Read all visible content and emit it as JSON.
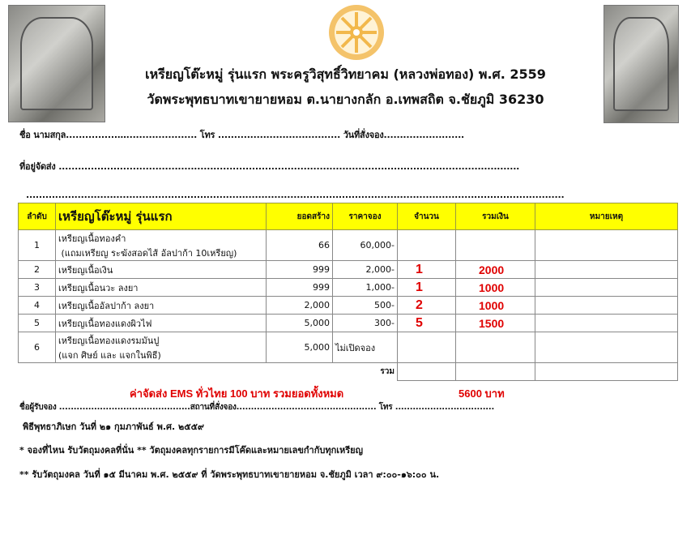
{
  "header": {
    "title_line1": "เหรียญโต๊ะหมู่ รุ่นแรก พระครูวิสุทธิ์วิทยาคม (หลวงพ่อทอง)  พ.ศ. 2559",
    "title_line2": "วัดพระพุทธบาทเขายายหอม ต.นายางกลัก อ.เทพสถิต จ.ชัยภูมิ 36230",
    "logo_icon": "dharma-wheel-icon",
    "logo_color": "#f2b84b"
  },
  "form": {
    "name_line": "ชื่อ นามสกุล................…...................... โทร ...................................... วันที่สั่งจอง.........................",
    "address_line": "ที่อยู่จัดส่ง ...............................................................................................................................................",
    "address_line2": ".......................................................................................................................................................................",
    "receiver_line": "ชื่อผู้รับจอง .............................................สถานที่สั่งจอง................................................  โทร .................................."
  },
  "table": {
    "headers": [
      "ลำดับ",
      "เหรียญโต๊ะหมู่ รุ่นแรก",
      "ยอดสร้าง",
      "ราคาจอง",
      "จำนวน",
      "รวมเงิน",
      "หมายเหตุ"
    ],
    "rows": [
      {
        "no": "1",
        "name": "เหรียญเนื้อทองคำ",
        "name2": " (แถมเหรียญ ระฆังสอดไส้ อัลปาก้า 10เหรียญ)",
        "made": "66",
        "price": "60,000-",
        "qty": "",
        "total": ""
      },
      {
        "no": "2",
        "name": "เหรียญเนื้อเงิน",
        "name2": "",
        "made": "999",
        "price": "2,000-",
        "qty": "1",
        "total": "2000"
      },
      {
        "no": "3",
        "name": "เหรียญเนื้อนวะ ลงยา",
        "name2": "",
        "made": "999",
        "price": "1,000-",
        "qty": "1",
        "total": "1000"
      },
      {
        "no": "4",
        "name": "เหรียญเนื้ออัลปาก้า ลงยา",
        "name2": "",
        "made": "2,000",
        "price": "500-",
        "qty": "2",
        "total": "1000"
      },
      {
        "no": "5",
        "name": "เหรียญเนื้อทองแดงผิวไฟ",
        "name2": "",
        "made": "5,000",
        "price": "300-",
        "qty": "5",
        "total": "1500"
      },
      {
        "no": "6",
        "name": "เหรียญเนื้อทองแดงรมมันปู",
        "name2": "(แจก ศิษย์ และ แจกในพิธี)",
        "made": "5,000",
        "price": "ไม่เปิดจอง",
        "qty": "",
        "total": ""
      }
    ],
    "sum_label": "รวม"
  },
  "shipping": {
    "text": "ค่าจัดส่ง EMS ทั่วไทย  100 บาท รวมยอดทั้งหมด",
    "grand_total": "5600 บาท"
  },
  "notes": [
    "พิธีพุทธาภิเษก วันที่ ๒๑ กุมภาพันธ์ พ.ศ. ๒๕๕๙",
    "* จองที่ไหน รับวัตถุมงคลที่นั่น ** วัตถุมงคลทุกรายการมีโค๊ดและหมายเลขกำกับทุกเหรียญ",
    "** รับวัตถุมงคล วันที่ ๑๕ มีนาคม พ.ศ. ๒๕๕๙ ที่ วัดพระพุทธบาทเขายายหอม จ.ชัยภูมิ เวลา ๙:๐๐-๑๖:๐๐ น."
  ]
}
